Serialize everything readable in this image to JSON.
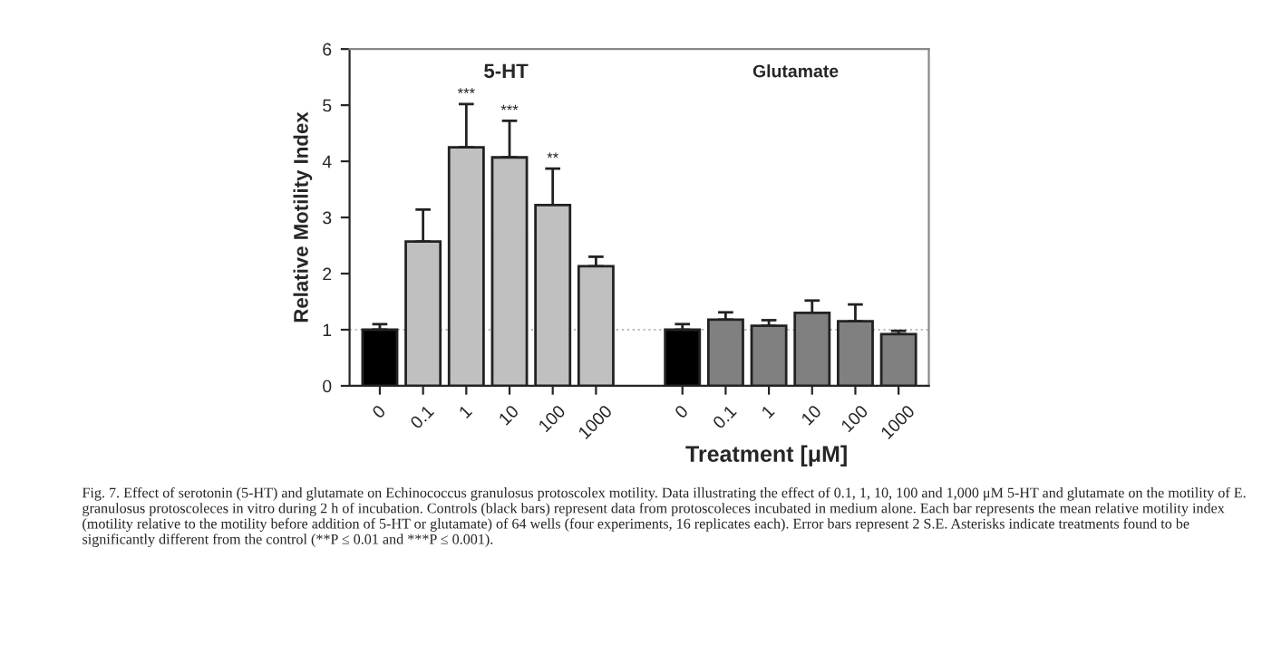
{
  "chart_data": {
    "type": "bar",
    "xlabel": "Treatment [μM]",
    "ylabel": "Relative Motility Index",
    "categories": [
      "0",
      "0.1",
      "1",
      "10",
      "100",
      "1000",
      null,
      "0",
      "0.1",
      "1",
      "10",
      "100",
      "1000"
    ],
    "values": [
      1.0,
      2.57,
      4.25,
      4.07,
      3.22,
      2.13,
      null,
      1.0,
      1.18,
      1.07,
      1.3,
      1.15,
      0.92
    ],
    "errors": [
      [
        1.0,
        1.1
      ],
      [
        2.57,
        3.14
      ],
      [
        4.25,
        5.02
      ],
      [
        4.07,
        4.72
      ],
      [
        3.22,
        3.87
      ],
      [
        2.13,
        2.3
      ],
      null,
      [
        1.0,
        1.1
      ],
      [
        1.18,
        1.31
      ],
      [
        1.07,
        1.17
      ],
      [
        1.3,
        1.52
      ],
      [
        1.15,
        1.45
      ],
      [
        0.92,
        0.98
      ]
    ],
    "colors": [
      "#000000",
      "#c0c0c0",
      "#c0c0c0",
      "#c0c0c0",
      "#c0c0c0",
      "#c0c0c0",
      "#ffffff",
      "#000000",
      "#808080",
      "#808080",
      "#808080",
      "#808080",
      "#808080"
    ],
    "ylim": [
      0,
      6
    ],
    "yticks": [
      0,
      1,
      2,
      3,
      4,
      5,
      6
    ],
    "ref_lines": [
      {
        "axis": "y",
        "value": 1,
        "color": "#bbbbbb",
        "line_style": "dotted"
      }
    ],
    "grid": false,
    "annotations": [
      "5-HT",
      "Glutamate",
      {
        "text": "***",
        "x": "1",
        "y": 5.02
      },
      {
        "text": "***",
        "x": "10",
        "y": 4.72
      },
      {
        "text": "**",
        "x": "100",
        "y": 3.87
      },
      "Fig. 7. Effect of serotonin (5-HT) and glutamate on Echinococcus granulosus protoscolex motility. Data illustrating the effect of 0.1, 1, 10, 100 and 1,000 μM 5-HT and glutamate on the motility of E. granulosus protoscoleces in vitro during 2 h of incubation. Controls (black bars) represent data from protoscoleces incubated in medium alone. Each bar represents the mean relative motility index (motility relative to the motility before addition of 5-HT or glutamate) of 64 wells (four experiments, 16 replicates each). Error bars represent 2 S.E. Asterisks indicate treatments found to be significantly different from the control (**P ≤ 0.01 and ***P ≤ 0.001)."
    ]
  }
}
